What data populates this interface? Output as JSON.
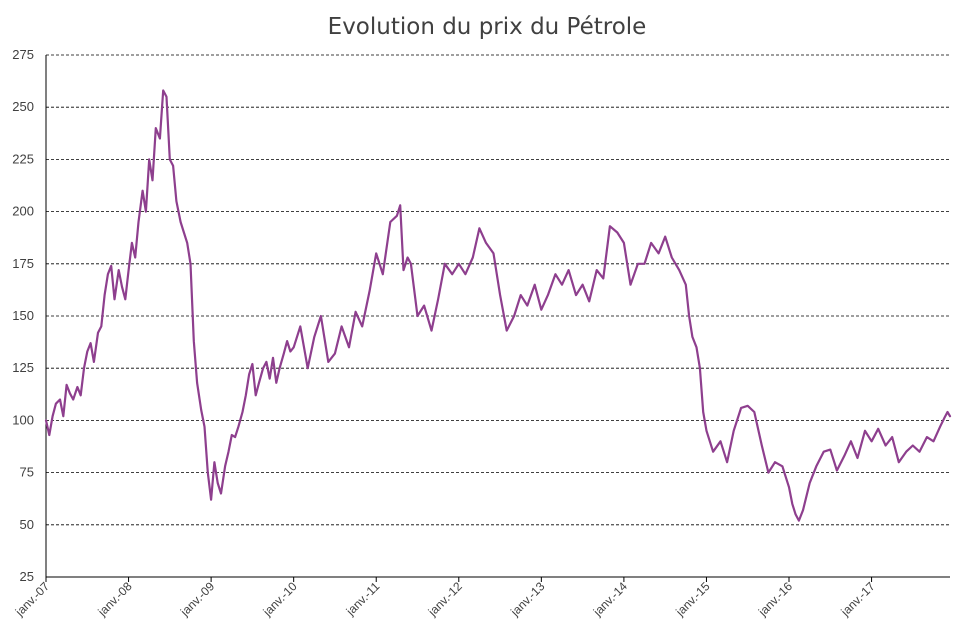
{
  "chart_data": {
    "type": "line",
    "title": "Evolution du prix du Pétrole",
    "xlabel": "",
    "ylabel": "",
    "ylim": [
      25,
      275
    ],
    "yticks": [
      25,
      50,
      75,
      100,
      125,
      150,
      175,
      200,
      225,
      250,
      275
    ],
    "xlim": [
      2007.0,
      2017.95
    ],
    "xticks": [
      {
        "value": 2007,
        "label": "janv.-07"
      },
      {
        "value": 2008,
        "label": "janv.-08"
      },
      {
        "value": 2009,
        "label": "janv.-09"
      },
      {
        "value": 2010,
        "label": "janv.-10"
      },
      {
        "value": 2011,
        "label": "janv.-11"
      },
      {
        "value": 2012,
        "label": "janv.-12"
      },
      {
        "value": 2013,
        "label": "janv.-13"
      },
      {
        "value": 2014,
        "label": "janv.-14"
      },
      {
        "value": 2015,
        "label": "janv.-15"
      },
      {
        "value": 2016,
        "label": "janv.-16"
      },
      {
        "value": 2017,
        "label": "janv.-17"
      }
    ],
    "grid": "horizontal-dashed",
    "colors": {
      "line": "#8e3f8e",
      "grid": "#000000",
      "axis": "#000000"
    },
    "series": [
      {
        "x": [
          2007.0,
          2007.04,
          2007.08,
          2007.12,
          2007.17,
          2007.21,
          2007.25,
          2007.29,
          2007.33,
          2007.38,
          2007.42,
          2007.46,
          2007.5,
          2007.54,
          2007.58,
          2007.63,
          2007.67,
          2007.71,
          2007.75,
          2007.79,
          2007.83,
          2007.88,
          2007.92,
          2007.96,
          2008.0,
          2008.04,
          2008.08,
          2008.12,
          2008.17,
          2008.21,
          2008.25,
          2008.29,
          2008.33,
          2008.38,
          2008.42,
          2008.46,
          2008.5,
          2008.54,
          2008.58,
          2008.63,
          2008.67,
          2008.71,
          2008.75,
          2008.79,
          2008.83,
          2008.88,
          2008.92,
          2008.96,
          2009.0,
          2009.04,
          2009.08,
          2009.12,
          2009.17,
          2009.21,
          2009.25,
          2009.29,
          2009.33,
          2009.38,
          2009.42,
          2009.46,
          2009.5,
          2009.54,
          2009.58,
          2009.63,
          2009.67,
          2009.71,
          2009.75,
          2009.79,
          2009.83,
          2009.88,
          2009.92,
          2009.96,
          2010.0,
          2010.08,
          2010.17,
          2010.25,
          2010.33,
          2010.42,
          2010.5,
          2010.58,
          2010.67,
          2010.75,
          2010.83,
          2010.92,
          2011.0,
          2011.08,
          2011.17,
          2011.25,
          2011.29,
          2011.33,
          2011.38,
          2011.42,
          2011.5,
          2011.58,
          2011.67,
          2011.75,
          2011.83,
          2011.92,
          2012.0,
          2012.08,
          2012.17,
          2012.25,
          2012.33,
          2012.42,
          2012.5,
          2012.58,
          2012.67,
          2012.75,
          2012.83,
          2012.92,
          2013.0,
          2013.08,
          2013.17,
          2013.25,
          2013.33,
          2013.42,
          2013.5,
          2013.58,
          2013.67,
          2013.75,
          2013.83,
          2013.92,
          2014.0,
          2014.08,
          2014.17,
          2014.25,
          2014.33,
          2014.42,
          2014.5,
          2014.58,
          2014.67,
          2014.75,
          2014.79,
          2014.83,
          2014.88,
          2014.92,
          2014.96,
          2015.0,
          2015.08,
          2015.17,
          2015.25,
          2015.33,
          2015.42,
          2015.5,
          2015.58,
          2015.67,
          2015.75,
          2015.83,
          2015.92,
          2015.96,
          2016.0,
          2016.04,
          2016.08,
          2016.12,
          2016.17,
          2016.25,
          2016.33,
          2016.42,
          2016.5,
          2016.58,
          2016.67,
          2016.75,
          2016.83,
          2016.92,
          2017.0,
          2017.08,
          2017.17,
          2017.25,
          2017.33,
          2017.42,
          2017.5,
          2017.58,
          2017.67,
          2017.75,
          2017.83,
          2017.88,
          2017.92,
          2017.95
        ],
        "values": [
          100,
          93,
          102,
          108,
          110,
          102,
          117,
          113,
          110,
          116,
          112,
          125,
          133,
          137,
          128,
          142,
          145,
          160,
          170,
          174,
          158,
          172,
          164,
          158,
          172,
          185,
          178,
          195,
          210,
          200,
          225,
          215,
          240,
          235,
          258,
          255,
          225,
          222,
          205,
          195,
          190,
          185,
          175,
          138,
          118,
          105,
          97,
          75,
          62,
          80,
          70,
          65,
          78,
          85,
          93,
          92,
          97,
          104,
          112,
          122,
          127,
          112,
          118,
          125,
          128,
          120,
          130,
          118,
          125,
          132,
          138,
          133,
          135,
          145,
          125,
          140,
          150,
          128,
          132,
          145,
          135,
          152,
          145,
          162,
          180,
          170,
          195,
          198,
          203,
          172,
          178,
          175,
          150,
          155,
          143,
          158,
          175,
          170,
          175,
          170,
          178,
          192,
          185,
          180,
          160,
          143,
          150,
          160,
          155,
          165,
          153,
          160,
          170,
          165,
          172,
          160,
          165,
          157,
          172,
          168,
          193,
          190,
          185,
          165,
          175,
          175,
          185,
          180,
          188,
          178,
          172,
          165,
          150,
          140,
          135,
          125,
          104,
          95,
          85,
          90,
          80,
          95,
          106,
          107,
          104,
          88,
          75,
          80,
          78,
          73,
          68,
          60,
          55,
          52,
          57,
          70,
          78,
          85,
          86,
          76,
          83,
          90,
          82,
          95,
          90,
          96,
          88,
          92,
          80,
          85,
          88,
          85,
          92,
          90,
          97,
          101,
          104,
          102
        ]
      }
    ]
  }
}
